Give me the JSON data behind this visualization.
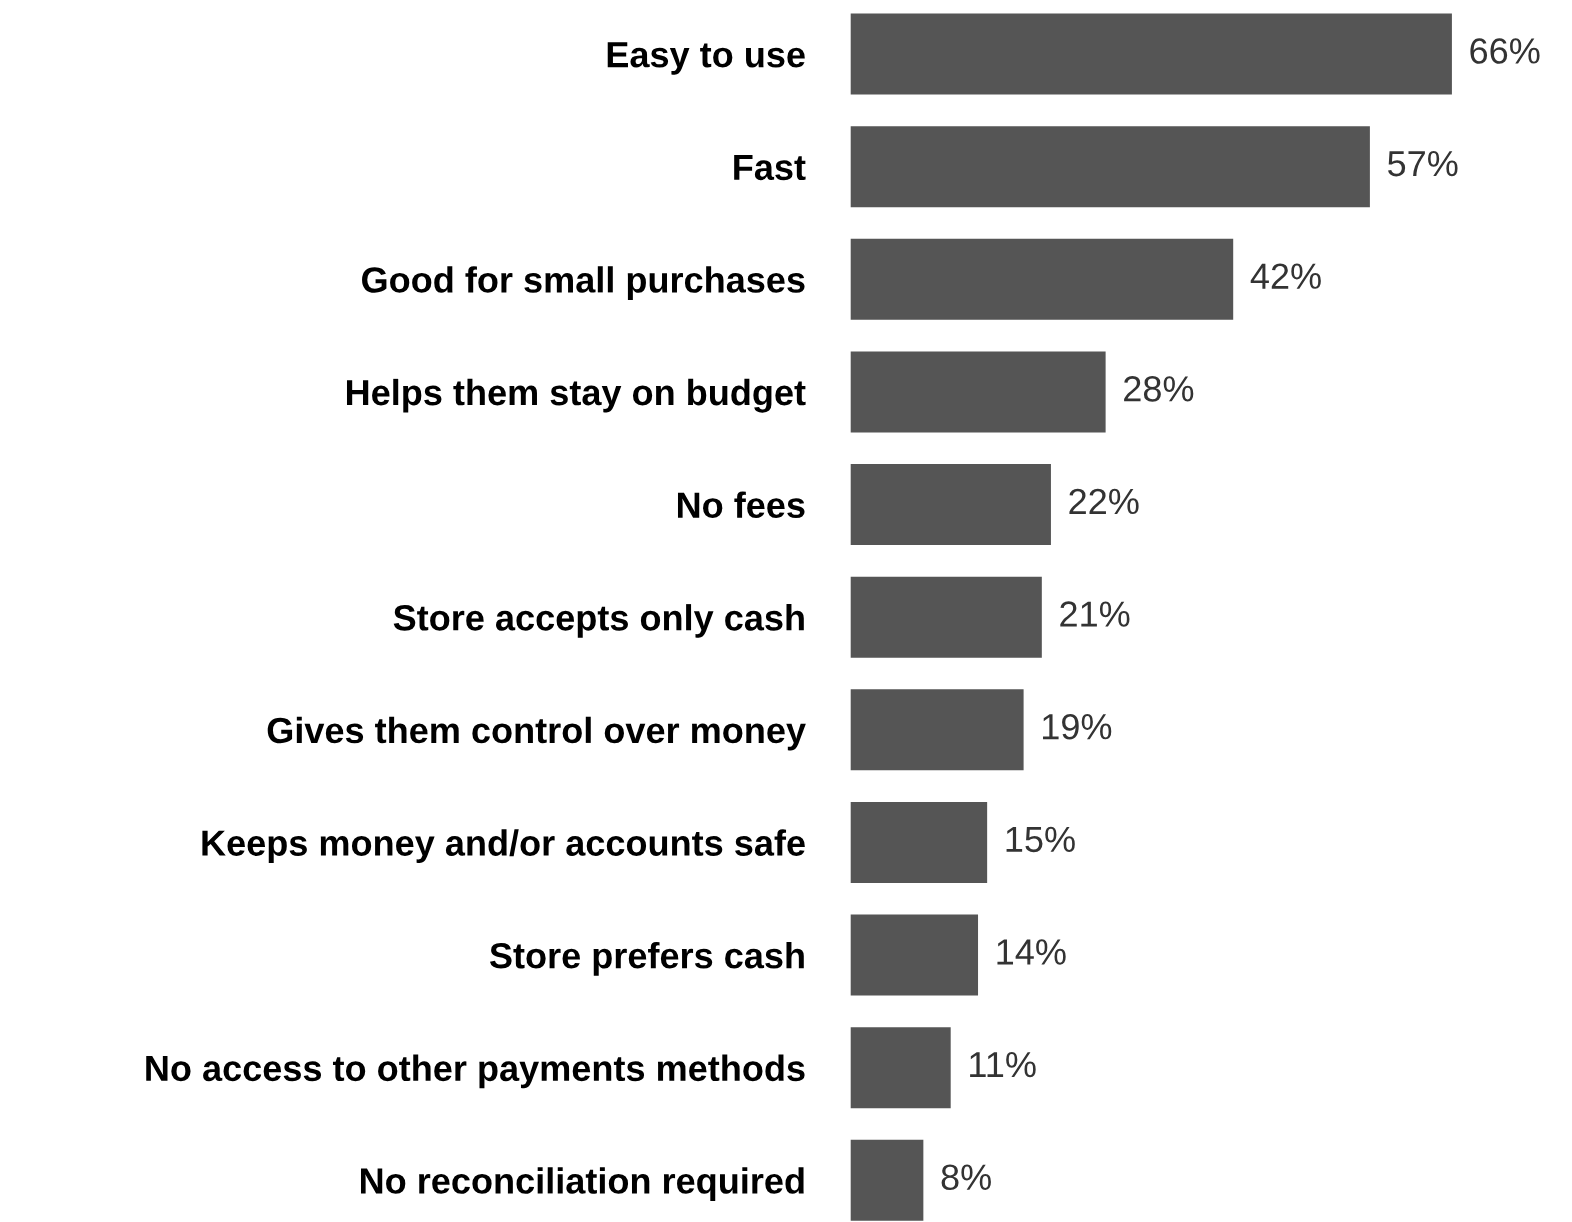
{
  "chart_data": {
    "type": "bar",
    "orientation": "horizontal",
    "categories": [
      "Easy to use",
      "Fast",
      "Good for small purchases",
      "Helps them stay on budget",
      "No fees",
      "Store accepts only cash",
      "Gives them control over money",
      "Keeps money and/or accounts safe",
      "Store prefers cash",
      "No access to other payments methods",
      "No reconciliation required"
    ],
    "values": [
      66,
      57,
      42,
      28,
      22,
      21,
      19,
      15,
      14,
      11,
      8
    ],
    "value_labels": [
      "66%",
      "57%",
      "42%",
      "28%",
      "22%",
      "21%",
      "19%",
      "15%",
      "14%",
      "11%",
      "8%"
    ],
    "color": "#555555",
    "grid": false,
    "legend": false
  }
}
